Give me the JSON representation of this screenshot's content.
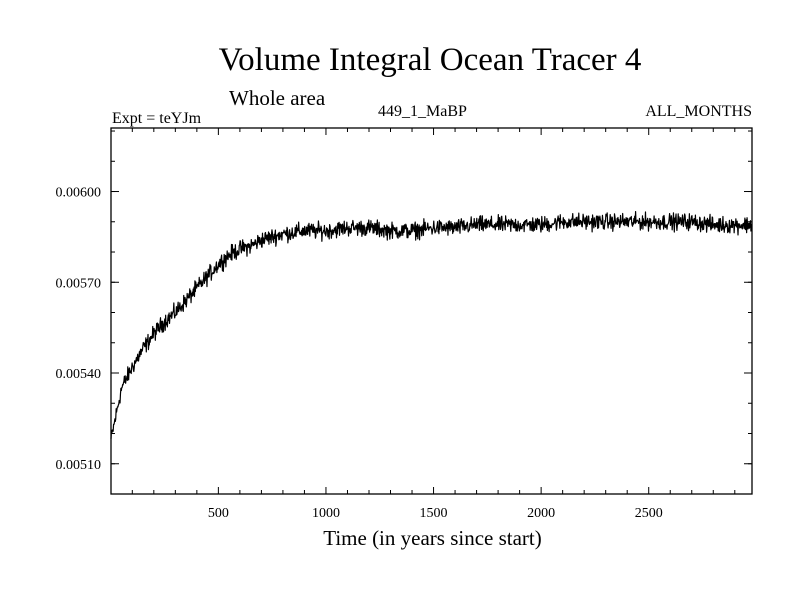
{
  "header": {
    "title": "Volume Integral Ocean Tracer 4",
    "subtitle": "Whole area",
    "expt": "Expt = teYJm",
    "run": "449_1_MaBP",
    "months": "ALL_MONTHS"
  },
  "chart_data": {
    "type": "line",
    "title": "Volume Integral Ocean Tracer 4",
    "subtitle": "Whole area",
    "xlabel": "Time (in years since start)",
    "ylabel": "",
    "xlim": [
      1,
      2980
    ],
    "ylim": [
      0.005,
      0.00621
    ],
    "x_ticks": [
      500,
      1000,
      1500,
      2000,
      2500
    ],
    "x_tick_labels": [
      "500",
      "1000",
      "1500",
      "2000",
      "2500"
    ],
    "y_ticks": [
      0.0051,
      0.0054,
      0.0057,
      0.006
    ],
    "y_tick_labels": [
      "0.00510",
      "0.00540",
      "0.00570",
      "0.00600"
    ],
    "series": [
      {
        "name": "Ocean Tracer 4",
        "color": "#000000",
        "x": [
          1,
          50,
          100,
          150,
          200,
          250,
          300,
          350,
          400,
          450,
          500,
          550,
          600,
          650,
          700,
          750,
          800,
          900,
          1000,
          1100,
          1200,
          1300,
          1400,
          1500,
          1600,
          1700,
          1800,
          1900,
          2000,
          2100,
          2200,
          2300,
          2400,
          2500,
          2600,
          2700,
          2800,
          2900,
          2980
        ],
        "values": [
          0.00518,
          0.00535,
          0.00542,
          0.00548,
          0.00553,
          0.00557,
          0.0056,
          0.00564,
          0.00568,
          0.00572,
          0.00576,
          0.00579,
          0.00581,
          0.00582,
          0.00584,
          0.00585,
          0.00586,
          0.00587,
          0.00587,
          0.00588,
          0.00588,
          0.00587,
          0.00587,
          0.00588,
          0.00588,
          0.00589,
          0.00589,
          0.00589,
          0.00589,
          0.0059,
          0.0059,
          0.0059,
          0.0059,
          0.0059,
          0.0059,
          0.0059,
          0.00589,
          0.00589,
          0.00589
        ],
        "noise_amplitude": 4e-05
      }
    ]
  }
}
